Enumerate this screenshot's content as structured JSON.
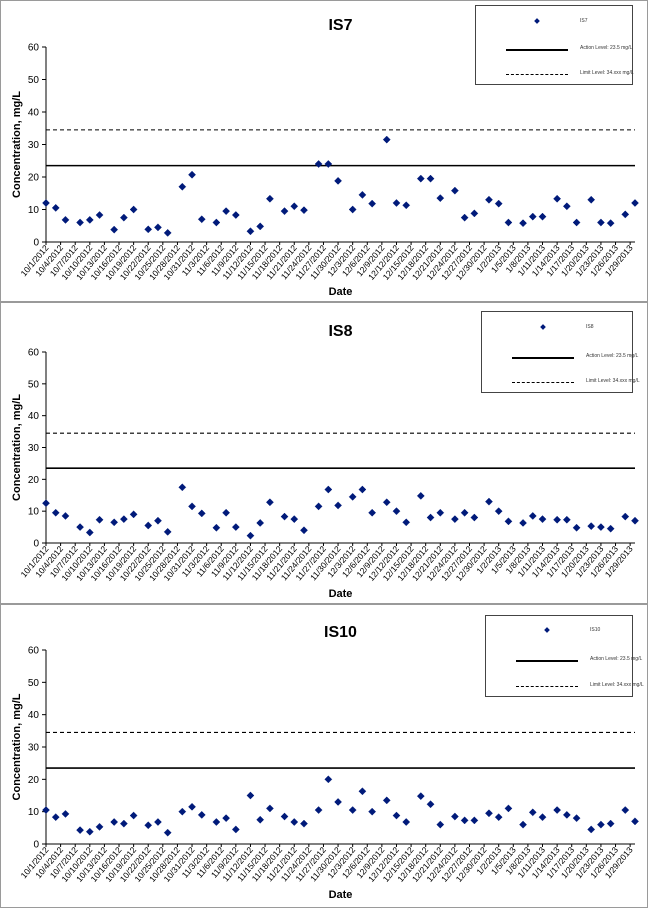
{
  "chart_data": [
    {
      "type": "scatter",
      "title": "IS7",
      "xlabel": "Date",
      "ylabel": "Concentration, mg/L",
      "ylim": [
        0,
        60
      ],
      "yticks": [
        0,
        10,
        20,
        30,
        40,
        50,
        60
      ],
      "x_tick_labels": [
        "10/1/2012",
        "10/4/2012",
        "10/7/2012",
        "10/10/2012",
        "10/13/2012",
        "10/16/2012",
        "10/19/2012",
        "10/22/2012",
        "10/25/2012",
        "10/28/2012",
        "10/31/2012",
        "11/3/2012",
        "11/6/2012",
        "11/9/2012",
        "11/12/2012",
        "11/15/2012",
        "11/18/2012",
        "11/21/2012",
        "11/24/2012",
        "11/27/2012",
        "11/30/2012",
        "12/3/2012",
        "12/6/2012",
        "12/9/2012",
        "12/12/2012",
        "12/15/2012",
        "12/18/2012",
        "12/21/2012",
        "12/24/2012",
        "12/27/2012",
        "12/30/2012",
        "1/2/2013",
        "1/5/2013",
        "1/8/2013",
        "1/11/2013",
        "1/14/2013",
        "1/17/2013",
        "1/20/2013",
        "1/23/2013",
        "1/26/2013",
        "1/29/2013"
      ],
      "x_range": [
        "10/1/2012",
        "1/30/2013"
      ],
      "grid": false,
      "legend_position": "top-right",
      "legend": [
        "IS7",
        "Action Level: 23.5 mg/L",
        "Limit Level: 34.xxx mg/L"
      ],
      "reference_lines": [
        {
          "name": "Action Level",
          "value": 23.5,
          "style": "solid"
        },
        {
          "name": "Limit Level",
          "value": 34.5,
          "style": "dashed"
        }
      ],
      "series": [
        {
          "name": "IS7",
          "color": "#001a7a",
          "marker": "diamond",
          "points": [
            [
              "10/1/2012",
              12.0
            ],
            [
              "10/3/2012",
              10.5
            ],
            [
              "10/5/2012",
              6.8
            ],
            [
              "10/8/2012",
              6.0
            ],
            [
              "10/10/2012",
              6.8
            ],
            [
              "10/12/2012",
              8.3
            ],
            [
              "10/15/2012",
              3.8
            ],
            [
              "10/17/2012",
              7.5
            ],
            [
              "10/19/2012",
              10.0
            ],
            [
              "10/22/2012",
              3.9
            ],
            [
              "10/24/2012",
              4.5
            ],
            [
              "10/26/2012",
              2.8
            ],
            [
              "10/29/2012",
              17.0
            ],
            [
              "10/31/2012",
              20.7
            ],
            [
              "11/2/2012",
              7.0
            ],
            [
              "11/5/2012",
              6.0
            ],
            [
              "11/7/2012",
              9.5
            ],
            [
              "11/9/2012",
              8.3
            ],
            [
              "11/12/2012",
              3.3
            ],
            [
              "11/14/2012",
              4.8
            ],
            [
              "11/16/2012",
              13.3
            ],
            [
              "11/19/2012",
              9.5
            ],
            [
              "11/21/2012",
              11.0
            ],
            [
              "11/23/2012",
              9.8
            ],
            [
              "11/26/2012",
              24.0
            ],
            [
              "11/28/2012",
              24.0
            ],
            [
              "11/30/2012",
              18.8
            ],
            [
              "12/3/2012",
              10.0
            ],
            [
              "12/5/2012",
              14.5
            ],
            [
              "12/7/2012",
              11.8
            ],
            [
              "12/10/2012",
              31.5
            ],
            [
              "12/12/2012",
              12.0
            ],
            [
              "12/14/2012",
              11.3
            ],
            [
              "12/17/2012",
              19.5
            ],
            [
              "12/19/2012",
              19.5
            ],
            [
              "12/21/2012",
              13.5
            ],
            [
              "12/24/2012",
              15.8
            ],
            [
              "12/26/2012",
              7.5
            ],
            [
              "12/28/2012",
              8.8
            ],
            [
              "12/31/2012",
              13.0
            ],
            [
              "1/2/2013",
              11.8
            ],
            [
              "1/4/2013",
              6.0
            ],
            [
              "1/7/2013",
              5.8
            ],
            [
              "1/9/2013",
              7.8
            ],
            [
              "1/11/2013",
              7.8
            ],
            [
              "1/14/2013",
              13.3
            ],
            [
              "1/16/2013",
              11.0
            ],
            [
              "1/18/2013",
              6.0
            ],
            [
              "1/21/2013",
              13.0
            ],
            [
              "1/23/2013",
              6.0
            ],
            [
              "1/25/2013",
              5.8
            ],
            [
              "1/28/2013",
              8.5
            ],
            [
              "1/30/2013",
              12.0
            ]
          ]
        }
      ]
    },
    {
      "type": "scatter",
      "title": "IS8",
      "xlabel": "Date",
      "ylabel": "Concentration, mg/L",
      "ylim": [
        0,
        60
      ],
      "yticks": [
        0,
        10,
        20,
        30,
        40,
        50,
        60
      ],
      "x_tick_labels": [
        "10/1/2012",
        "10/4/2012",
        "10/7/2012",
        "10/10/2012",
        "10/13/2012",
        "10/16/2012",
        "10/19/2012",
        "10/22/2012",
        "10/25/2012",
        "10/28/2012",
        "10/31/2012",
        "11/3/2012",
        "11/6/2012",
        "11/9/2012",
        "11/12/2012",
        "11/15/2012",
        "11/18/2012",
        "11/21/2012",
        "11/24/2012",
        "11/27/2012",
        "11/30/2012",
        "12/3/2012",
        "12/6/2012",
        "12/9/2012",
        "12/12/2012",
        "12/15/2012",
        "12/18/2012",
        "12/21/2012",
        "12/24/2012",
        "12/27/2012",
        "12/30/2012",
        "1/2/2013",
        "1/5/2013",
        "1/8/2013",
        "1/11/2013",
        "1/14/2013",
        "1/17/2013",
        "1/20/2013",
        "1/23/2013",
        "1/26/2013",
        "1/29/2013"
      ],
      "x_range": [
        "10/1/2012",
        "1/30/2013"
      ],
      "grid": false,
      "legend_position": "top-right",
      "legend": [
        "IS8",
        "Action Level: 23.5 mg/L",
        "Limit Level: 34.xxx mg/L"
      ],
      "reference_lines": [
        {
          "name": "Action Level",
          "value": 23.5,
          "style": "solid"
        },
        {
          "name": "Limit Level",
          "value": 34.5,
          "style": "dashed"
        }
      ],
      "series": [
        {
          "name": "IS8",
          "color": "#001a7a",
          "marker": "diamond",
          "points": [
            [
              "10/1/2012",
              12.5
            ],
            [
              "10/3/2012",
              9.5
            ],
            [
              "10/5/2012",
              8.5
            ],
            [
              "10/8/2012",
              5.0
            ],
            [
              "10/10/2012",
              3.3
            ],
            [
              "10/12/2012",
              7.3
            ],
            [
              "10/15/2012",
              6.5
            ],
            [
              "10/17/2012",
              7.5
            ],
            [
              "10/19/2012",
              9.0
            ],
            [
              "10/22/2012",
              5.5
            ],
            [
              "10/24/2012",
              7.0
            ],
            [
              "10/26/2012",
              3.5
            ],
            [
              "10/29/2012",
              17.5
            ],
            [
              "10/31/2012",
              11.5
            ],
            [
              "11/2/2012",
              9.3
            ],
            [
              "11/5/2012",
              4.8
            ],
            [
              "11/7/2012",
              9.5
            ],
            [
              "11/9/2012",
              5.0
            ],
            [
              "11/12/2012",
              2.3
            ],
            [
              "11/14/2012",
              6.3
            ],
            [
              "11/16/2012",
              12.8
            ],
            [
              "11/19/2012",
              8.3
            ],
            [
              "11/21/2012",
              7.5
            ],
            [
              "11/23/2012",
              4.0
            ],
            [
              "11/26/2012",
              11.5
            ],
            [
              "11/28/2012",
              16.8
            ],
            [
              "11/30/2012",
              11.8
            ],
            [
              "12/3/2012",
              14.5
            ],
            [
              "12/5/2012",
              16.8
            ],
            [
              "12/7/2012",
              9.5
            ],
            [
              "12/10/2012",
              12.8
            ],
            [
              "12/12/2012",
              10.0
            ],
            [
              "12/14/2012",
              6.5
            ],
            [
              "12/17/2012",
              14.8
            ],
            [
              "12/19/2012",
              8.0
            ],
            [
              "12/21/2012",
              9.5
            ],
            [
              "12/24/2012",
              7.5
            ],
            [
              "12/26/2012",
              9.5
            ],
            [
              "12/28/2012",
              8.0
            ],
            [
              "12/31/2012",
              13.0
            ],
            [
              "1/2/2013",
              10.0
            ],
            [
              "1/4/2013",
              6.8
            ],
            [
              "1/7/2013",
              6.3
            ],
            [
              "1/9/2013",
              8.5
            ],
            [
              "1/11/2013",
              7.5
            ],
            [
              "1/14/2013",
              7.3
            ],
            [
              "1/16/2013",
              7.3
            ],
            [
              "1/18/2013",
              4.8
            ],
            [
              "1/21/2013",
              5.3
            ],
            [
              "1/23/2013",
              5.0
            ],
            [
              "1/25/2013",
              4.5
            ],
            [
              "1/28/2013",
              8.3
            ],
            [
              "1/30/2013",
              7.0
            ]
          ]
        }
      ]
    },
    {
      "type": "scatter",
      "title": "IS10",
      "xlabel": "Date",
      "ylabel": "Concentration, mg/L",
      "ylim": [
        0,
        60
      ],
      "yticks": [
        0,
        10,
        20,
        30,
        40,
        50,
        60
      ],
      "x_tick_labels": [
        "10/1/2012",
        "10/4/2012",
        "10/7/2012",
        "10/10/2012",
        "10/13/2012",
        "10/16/2012",
        "10/19/2012",
        "10/22/2012",
        "10/25/2012",
        "10/28/2012",
        "10/31/2012",
        "11/3/2012",
        "11/6/2012",
        "11/9/2012",
        "11/12/2012",
        "11/15/2012",
        "11/18/2012",
        "11/21/2012",
        "11/24/2012",
        "11/27/2012",
        "11/30/2012",
        "12/3/2012",
        "12/6/2012",
        "12/9/2012",
        "12/12/2012",
        "12/15/2012",
        "12/18/2012",
        "12/21/2012",
        "12/24/2012",
        "12/27/2012",
        "12/30/2012",
        "1/2/2013",
        "1/5/2013",
        "1/8/2013",
        "1/11/2013",
        "1/14/2013",
        "1/17/2013",
        "1/20/2013",
        "1/23/2013",
        "1/26/2013",
        "1/29/2013"
      ],
      "x_range": [
        "10/1/2012",
        "1/30/2013"
      ],
      "grid": false,
      "legend_position": "top-right",
      "legend": [
        "IS10",
        "Action Level: 23.5 mg/L",
        "Limit Level: 34.xxx mg/L"
      ],
      "reference_lines": [
        {
          "name": "Action Level",
          "value": 23.5,
          "style": "solid"
        },
        {
          "name": "Limit Level",
          "value": 34.5,
          "style": "dashed"
        }
      ],
      "series": [
        {
          "name": "IS10",
          "color": "#001a7a",
          "marker": "diamond",
          "points": [
            [
              "10/1/2012",
              10.5
            ],
            [
              "10/3/2012",
              8.3
            ],
            [
              "10/5/2012",
              9.3
            ],
            [
              "10/8/2012",
              4.3
            ],
            [
              "10/10/2012",
              3.8
            ],
            [
              "10/12/2012",
              5.3
            ],
            [
              "10/15/2012",
              6.8
            ],
            [
              "10/17/2012",
              6.3
            ],
            [
              "10/19/2012",
              8.8
            ],
            [
              "10/22/2012",
              5.8
            ],
            [
              "10/24/2012",
              6.8
            ],
            [
              "10/26/2012",
              3.5
            ],
            [
              "10/29/2012",
              10.0
            ],
            [
              "10/31/2012",
              11.5
            ],
            [
              "11/2/2012",
              9.0
            ],
            [
              "11/5/2012",
              6.8
            ],
            [
              "11/7/2012",
              8.0
            ],
            [
              "11/9/2012",
              4.5
            ],
            [
              "11/12/2012",
              15.0
            ],
            [
              "11/14/2012",
              7.5
            ],
            [
              "11/16/2012",
              11.0
            ],
            [
              "11/19/2012",
              8.5
            ],
            [
              "11/21/2012",
              6.8
            ],
            [
              "11/23/2012",
              6.3
            ],
            [
              "11/26/2012",
              10.5
            ],
            [
              "11/28/2012",
              20.0
            ],
            [
              "11/30/2012",
              13.0
            ],
            [
              "12/3/2012",
              10.5
            ],
            [
              "12/5/2012",
              16.3
            ],
            [
              "12/7/2012",
              10.0
            ],
            [
              "12/10/2012",
              13.5
            ],
            [
              "12/12/2012",
              8.8
            ],
            [
              "12/14/2012",
              6.8
            ],
            [
              "12/17/2012",
              14.8
            ],
            [
              "12/19/2012",
              12.3
            ],
            [
              "12/21/2012",
              6.0
            ],
            [
              "12/24/2012",
              8.5
            ],
            [
              "12/26/2012",
              7.3
            ],
            [
              "12/28/2012",
              7.3
            ],
            [
              "12/31/2012",
              9.5
            ],
            [
              "1/2/2013",
              8.3
            ],
            [
              "1/4/2013",
              11.0
            ],
            [
              "1/7/2013",
              6.0
            ],
            [
              "1/9/2013",
              9.8
            ],
            [
              "1/11/2013",
              8.3
            ],
            [
              "1/14/2013",
              10.5
            ],
            [
              "1/16/2013",
              9.0
            ],
            [
              "1/18/2013",
              8.0
            ],
            [
              "1/21/2013",
              4.5
            ],
            [
              "1/23/2013",
              6.0
            ],
            [
              "1/25/2013",
              6.3
            ],
            [
              "1/28/2013",
              10.5
            ],
            [
              "1/30/2013",
              7.0
            ]
          ]
        }
      ]
    }
  ]
}
